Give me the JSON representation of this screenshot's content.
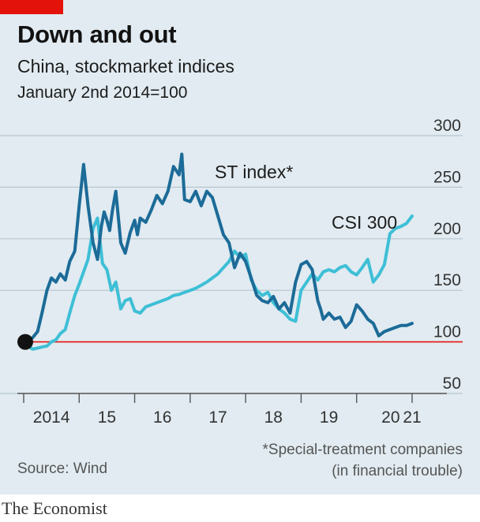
{
  "header": {
    "title": "Down and out",
    "subtitle": "China, stockmarket indices",
    "base_note": "January 2nd 2014=100"
  },
  "footer": {
    "footnote_line1": "*Special-treatment companies",
    "footnote_line2": "(in financial trouble)",
    "source": "Source: Wind",
    "brand": "The Economist"
  },
  "colors": {
    "panel_bg": "#e1ebf1",
    "accent_red": "#e3120b",
    "st_index": "#1c6b98",
    "csi300": "#3ebfd6",
    "baseline": "#e3120b",
    "grid": "#b9c6ce",
    "text": "#1c1c1c"
  },
  "chart_data": {
    "type": "line",
    "title": "Down and out",
    "subtitle": "China, stockmarket indices",
    "ylabel": "January 2nd 2014=100",
    "ylim": [
      50,
      300
    ],
    "yticks": [
      50,
      100,
      150,
      200,
      250,
      300
    ],
    "xlim": [
      2014.0,
      2021.1
    ],
    "xtick_labels": [
      "2014",
      "15",
      "16",
      "17",
      "18",
      "19",
      "20",
      "21"
    ],
    "grid": true,
    "baseline_value": 100,
    "start_marker": {
      "x": 2014.0,
      "y": 100
    },
    "series": [
      {
        "name": "ST index*",
        "label": "ST index*",
        "color": "#1c6b98",
        "x": [
          2014.0,
          2014.08,
          2014.16,
          2014.25,
          2014.33,
          2014.42,
          2014.5,
          2014.58,
          2014.66,
          2014.75,
          2014.83,
          2014.92,
          2015.0,
          2015.08,
          2015.16,
          2015.25,
          2015.33,
          2015.4,
          2015.45,
          2015.5,
          2015.55,
          2015.6,
          2015.66,
          2015.75,
          2015.83,
          2015.92,
          2016.0,
          2016.05,
          2016.1,
          2016.2,
          2016.3,
          2016.4,
          2016.5,
          2016.6,
          2016.7,
          2016.8,
          2016.85,
          2016.9,
          2017.0,
          2017.1,
          2017.2,
          2017.3,
          2017.4,
          2017.5,
          2017.6,
          2017.7,
          2017.8,
          2017.9,
          2018.0,
          2018.1,
          2018.2,
          2018.3,
          2018.4,
          2018.5,
          2018.6,
          2018.7,
          2018.8,
          2018.9,
          2019.0,
          2019.1,
          2019.2,
          2019.3,
          2019.35,
          2019.4,
          2019.5,
          2019.6,
          2019.7,
          2019.8,
          2019.9,
          2020.0,
          2020.1,
          2020.2,
          2020.3,
          2020.4,
          2020.5,
          2020.6,
          2020.7,
          2020.8,
          2020.9,
          2021.0
        ],
        "y": [
          100,
          102,
          104,
          110,
          128,
          150,
          162,
          158,
          166,
          160,
          178,
          188,
          232,
          272,
          232,
          196,
          180,
          212,
          226,
          218,
          208,
          228,
          246,
          196,
          186,
          206,
          218,
          204,
          220,
          216,
          228,
          242,
          234,
          246,
          270,
          262,
          282,
          238,
          236,
          246,
          232,
          246,
          240,
          222,
          204,
          196,
          172,
          186,
          178,
          162,
          145,
          140,
          138,
          144,
          132,
          138,
          128,
          158,
          175,
          178,
          170,
          140,
          132,
          122,
          128,
          122,
          124,
          114,
          120,
          136,
          130,
          122,
          118,
          106,
          110,
          112,
          114,
          116,
          116,
          118
        ]
      },
      {
        "name": "CSI 300",
        "label": "CSI 300",
        "color": "#3ebfd6",
        "x": [
          2014.0,
          2014.08,
          2014.16,
          2014.25,
          2014.33,
          2014.42,
          2014.5,
          2014.58,
          2014.66,
          2014.75,
          2014.83,
          2014.92,
          2015.0,
          2015.08,
          2015.16,
          2015.25,
          2015.33,
          2015.42,
          2015.5,
          2015.58,
          2015.66,
          2015.75,
          2015.83,
          2015.92,
          2016.0,
          2016.1,
          2016.2,
          2016.3,
          2016.4,
          2016.5,
          2016.6,
          2016.7,
          2016.8,
          2016.9,
          2017.0,
          2017.1,
          2017.2,
          2017.3,
          2017.4,
          2017.5,
          2017.6,
          2017.7,
          2017.8,
          2017.9,
          2018.0,
          2018.1,
          2018.2,
          2018.3,
          2018.4,
          2018.5,
          2018.6,
          2018.7,
          2018.8,
          2018.9,
          2019.0,
          2019.1,
          2019.2,
          2019.3,
          2019.4,
          2019.5,
          2019.6,
          2019.7,
          2019.8,
          2019.9,
          2020.0,
          2020.1,
          2020.2,
          2020.3,
          2020.4,
          2020.5,
          2020.6,
          2020.7,
          2020.8,
          2020.9,
          2021.0
        ],
        "y": [
          100,
          96,
          93,
          94,
          95,
          96,
          100,
          102,
          108,
          112,
          128,
          145,
          156,
          168,
          180,
          210,
          220,
          176,
          170,
          150,
          158,
          132,
          140,
          142,
          130,
          128,
          134,
          136,
          138,
          140,
          142,
          145,
          146,
          148,
          150,
          152,
          155,
          158,
          162,
          166,
          172,
          178,
          188,
          182,
          185,
          160,
          150,
          145,
          148,
          138,
          132,
          128,
          122,
          120,
          150,
          158,
          166,
          160,
          168,
          170,
          168,
          172,
          174,
          168,
          165,
          172,
          180,
          158,
          165,
          175,
          205,
          210,
          212,
          215,
          222
        ]
      }
    ]
  }
}
